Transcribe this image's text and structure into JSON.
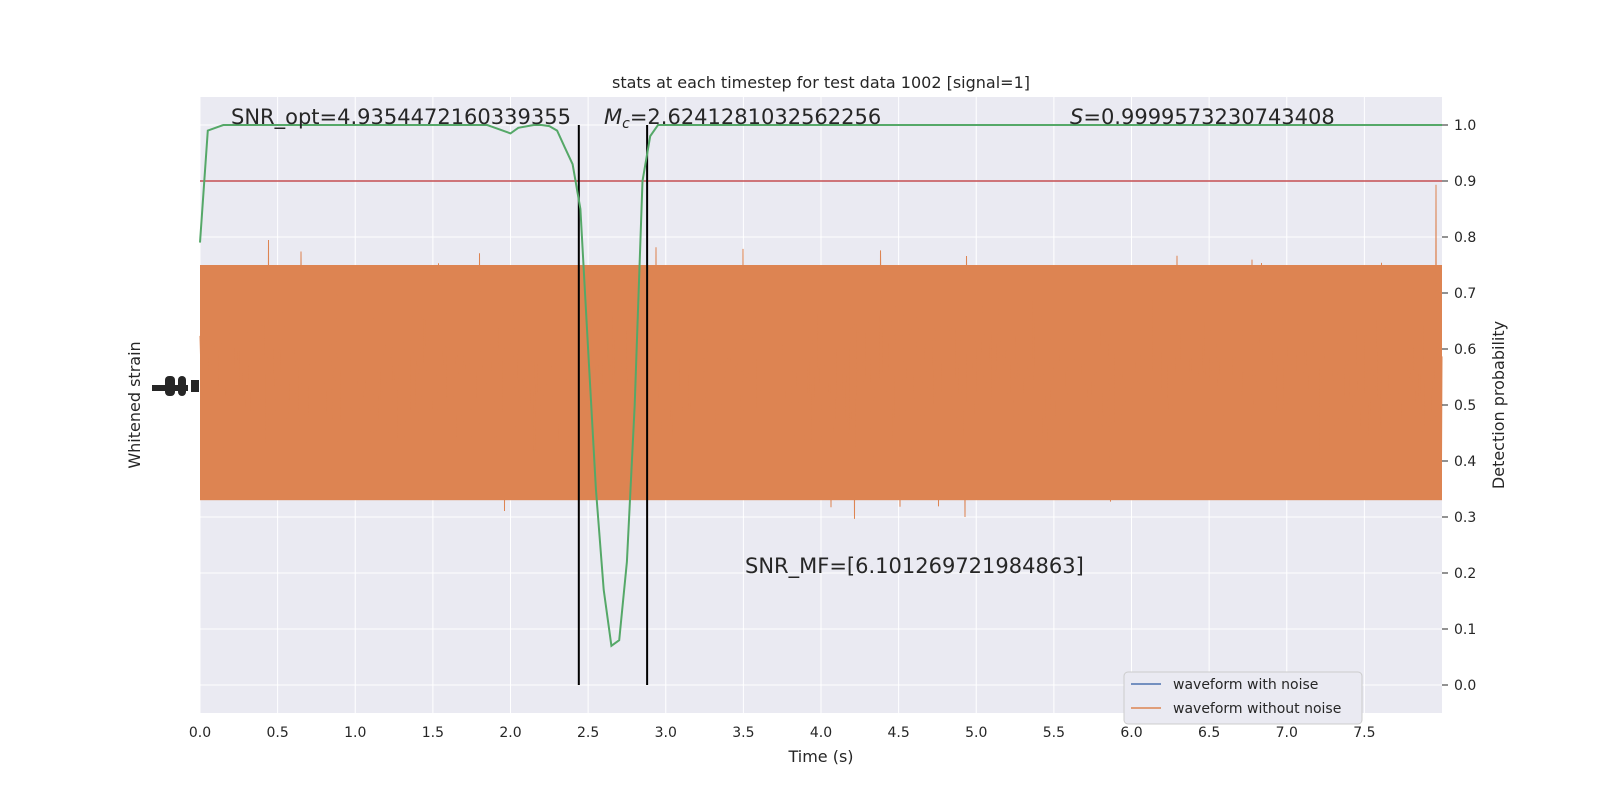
{
  "chart_data": {
    "type": "line",
    "title": "stats at each timestep for test data 1002 [signal=1]",
    "xlabel": "Time (s)",
    "ylabel_left": "Whitened strain",
    "ylabel_right": "Detection probability",
    "xlim": [
      0,
      8
    ],
    "ylim_right": [
      -0.05,
      1.05
    ],
    "x_ticks": [
      "0.0",
      "0.5",
      "1.0",
      "1.5",
      "2.0",
      "2.5",
      "3.0",
      "3.5",
      "4.0",
      "4.5",
      "5.0",
      "5.5",
      "6.0",
      "6.5",
      "7.0",
      "7.5"
    ],
    "y_right_ticks": [
      "0.0",
      "0.1",
      "0.2",
      "0.3",
      "0.4",
      "0.5",
      "0.6",
      "0.7",
      "0.8",
      "0.9",
      "1.0"
    ],
    "annotations": {
      "snr_opt": "SNR_opt=4.9354472160339355",
      "mc_symbol": "M",
      "mc_sub": "c",
      "mc_value": "=2.6241281032562256",
      "s_symbol": "S",
      "s_value": "=0.9999573230743408",
      "snr_mf": "SNR_MF=[6.101269721984863]"
    },
    "threshold": 0.9,
    "vlines": [
      2.44,
      2.88
    ],
    "detection_probability": {
      "x": [
        0.0,
        0.05,
        0.15,
        0.3,
        0.5,
        0.7,
        0.9,
        1.1,
        1.3,
        1.5,
        1.7,
        1.85,
        1.9,
        1.95,
        2.0,
        2.05,
        2.15,
        2.2,
        2.25,
        2.3,
        2.35,
        2.4,
        2.45,
        2.5,
        2.55,
        2.6,
        2.65,
        2.7,
        2.75,
        2.8,
        2.85,
        2.9,
        2.95,
        3.0,
        3.2,
        4.0,
        5.0,
        6.0,
        7.0,
        8.0
      ],
      "y": [
        0.79,
        0.99,
        1.0,
        1.0,
        1.0,
        1.0,
        1.0,
        1.0,
        1.0,
        1.0,
        1.0,
        1.0,
        0.995,
        0.99,
        0.985,
        0.995,
        1.0,
        1.0,
        0.998,
        0.99,
        0.96,
        0.93,
        0.85,
        0.6,
        0.35,
        0.17,
        0.07,
        0.08,
        0.22,
        0.5,
        0.9,
        0.98,
        1.0,
        1.0,
        1.0,
        1.0,
        1.0,
        1.0,
        1.0,
        1.0
      ]
    },
    "series": [
      {
        "name": "waveform with noise",
        "color": "#4c72b0"
      },
      {
        "name": "waveform without noise",
        "color": "#dd8452"
      }
    ],
    "colors": {
      "probability_line": "#55a868",
      "threshold_line": "#c44e52",
      "vline": "#000000",
      "background": "#eaeaf2",
      "strain_fill": "#dd8452"
    },
    "legend_position": "lower right",
    "grid": true
  }
}
